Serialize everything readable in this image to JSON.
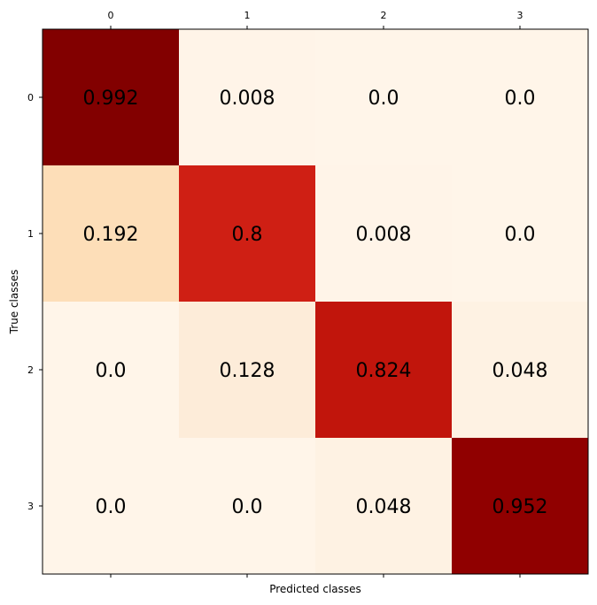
{
  "chart_data": {
    "type": "heatmap",
    "title": "",
    "xlabel": "Predicted classes",
    "ylabel": "True classes",
    "x_categories": [
      "0",
      "1",
      "2",
      "3"
    ],
    "y_categories": [
      "0",
      "1",
      "2",
      "3"
    ],
    "values": [
      [
        0.992,
        0.008,
        0.0,
        0.0
      ],
      [
        0.192,
        0.8,
        0.008,
        0.0
      ],
      [
        0.0,
        0.128,
        0.824,
        0.048
      ],
      [
        0.0,
        0.0,
        0.048,
        0.952
      ]
    ],
    "cell_labels": [
      [
        "0.992",
        "0.008",
        "0.0",
        "0.0"
      ],
      [
        "0.192",
        "0.8",
        "0.008",
        "0.0"
      ],
      [
        "0.0",
        "0.128",
        "0.824",
        "0.048"
      ],
      [
        "0.0",
        "0.0",
        "0.048",
        "0.952"
      ]
    ],
    "x_ticks_position": "top",
    "colormap": "Reds-like",
    "colors": {
      "low": "#fff5e9",
      "mid_low": "#fddcb2",
      "mid": "#cf1f14",
      "high": "#7f0000"
    },
    "grid": false,
    "legend": "none"
  }
}
